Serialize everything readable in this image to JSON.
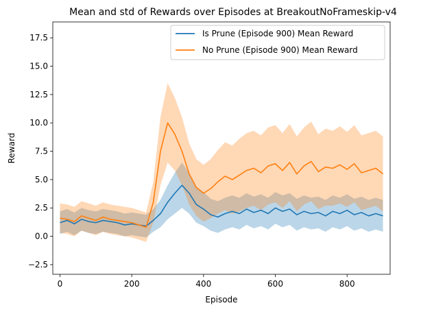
{
  "chart_data": {
    "type": "line",
    "title": "Mean and std of Rewards over Episodes at BreakoutNoFrameskip-v4",
    "xlabel": "Episode",
    "ylabel": "Reward",
    "xlim": [
      -20,
      920
    ],
    "ylim": [
      -3.35,
      18.9
    ],
    "x_ticks": [
      0,
      200,
      400,
      600,
      800
    ],
    "y_ticks": [
      -2.5,
      0.0,
      2.5,
      5.0,
      7.5,
      10.0,
      12.5,
      15.0,
      17.5
    ],
    "x_tick_labels": [
      "0",
      "200",
      "400",
      "600",
      "800"
    ],
    "y_tick_labels": [
      "−2.5",
      "0.0",
      "2.5",
      "5.0",
      "7.5",
      "10.0",
      "12.5",
      "15.0",
      "17.5"
    ],
    "grid": false,
    "legend_position": "top-right",
    "series": [
      {
        "name": "Is Prune (Episode 900) Mean Reward",
        "color": "#1f77b4",
        "x": [
          0,
          20,
          40,
          60,
          80,
          100,
          120,
          140,
          160,
          180,
          200,
          220,
          240,
          260,
          280,
          300,
          320,
          340,
          360,
          380,
          400,
          420,
          440,
          460,
          480,
          500,
          520,
          540,
          560,
          580,
          600,
          620,
          640,
          660,
          680,
          700,
          720,
          740,
          760,
          780,
          800,
          820,
          840,
          860,
          880,
          900
        ],
        "mean": [
          1.2,
          1.4,
          1.1,
          1.5,
          1.3,
          1.2,
          1.4,
          1.3,
          1.2,
          1.0,
          1.1,
          1.0,
          0.9,
          1.4,
          2.0,
          3.0,
          3.8,
          4.5,
          3.8,
          2.8,
          2.4,
          1.9,
          1.7,
          2.0,
          2.2,
          2.0,
          2.4,
          2.1,
          2.3,
          2.0,
          2.5,
          2.2,
          2.4,
          1.9,
          2.2,
          2.0,
          2.1,
          1.8,
          2.2,
          2.0,
          2.3,
          1.9,
          2.1,
          1.8,
          2.0,
          1.8
        ],
        "std": [
          1.0,
          1.0,
          1.0,
          1.0,
          1.0,
          1.0,
          1.0,
          1.0,
          1.0,
          1.0,
          1.0,
          1.0,
          1.0,
          1.0,
          1.2,
          1.5,
          1.8,
          2.0,
          1.8,
          1.6,
          1.5,
          1.4,
          1.4,
          1.4,
          1.4,
          1.4,
          1.4,
          1.4,
          1.4,
          1.4,
          1.4,
          1.4,
          1.4,
          1.4,
          1.4,
          1.4,
          1.4,
          1.4,
          1.4,
          1.4,
          1.4,
          1.4,
          1.4,
          1.4,
          1.4,
          1.4
        ]
      },
      {
        "name": "No Prune (Episode 900) Mean Reward",
        "color": "#ff7f0e",
        "x": [
          0,
          20,
          40,
          60,
          80,
          100,
          120,
          140,
          160,
          180,
          200,
          220,
          240,
          260,
          280,
          300,
          320,
          340,
          360,
          380,
          400,
          420,
          440,
          460,
          480,
          500,
          520,
          540,
          560,
          580,
          600,
          620,
          640,
          660,
          680,
          700,
          720,
          740,
          760,
          780,
          800,
          820,
          840,
          860,
          880,
          900
        ],
        "mean": [
          1.6,
          1.5,
          1.3,
          1.8,
          1.6,
          1.4,
          1.7,
          1.5,
          1.4,
          1.3,
          1.2,
          1.0,
          0.8,
          3.0,
          7.5,
          10.0,
          9.0,
          7.5,
          5.5,
          4.3,
          3.8,
          4.2,
          4.8,
          5.3,
          5.0,
          5.4,
          5.8,
          6.0,
          5.6,
          6.2,
          6.4,
          5.8,
          6.5,
          5.5,
          6.2,
          6.6,
          5.7,
          6.1,
          6.0,
          6.3,
          5.9,
          6.4,
          5.6,
          5.8,
          6.0,
          5.5
        ],
        "std": [
          1.3,
          1.3,
          1.3,
          1.3,
          1.3,
          1.3,
          1.3,
          1.3,
          1.3,
          1.3,
          1.3,
          1.3,
          1.3,
          1.8,
          3.0,
          3.5,
          3.2,
          3.0,
          2.7,
          2.5,
          2.5,
          2.6,
          2.8,
          3.0,
          3.0,
          3.2,
          3.3,
          3.3,
          3.3,
          3.4,
          3.4,
          3.3,
          3.4,
          3.3,
          3.4,
          3.5,
          3.3,
          3.4,
          3.3,
          3.4,
          3.3,
          3.4,
          3.3,
          3.3,
          3.3,
          3.3
        ]
      }
    ]
  }
}
